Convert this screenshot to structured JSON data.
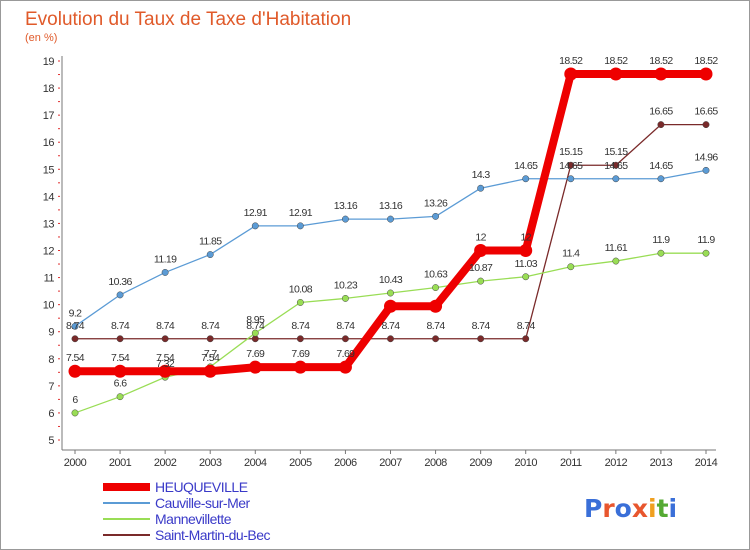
{
  "chart_data": {
    "type": "line",
    "title": "Evolution du Taux de Taxe d'Habitation",
    "subtitle": "(en %)",
    "x": [
      "2000",
      "2001",
      "2002",
      "2003",
      "2004",
      "2005",
      "2006",
      "2007",
      "2008",
      "2009",
      "2010",
      "2011",
      "2012",
      "2013",
      "2014"
    ],
    "ylim": [
      5,
      19
    ],
    "yticks": [
      5,
      6,
      7,
      8,
      9,
      10,
      11,
      12,
      13,
      14,
      15,
      16,
      17,
      18,
      19
    ],
    "grid": false,
    "legend_position": "bottom-left",
    "series": [
      {
        "name": "HEUQUEVILLE",
        "color": "#ee0000",
        "values": [
          7.54,
          7.54,
          7.54,
          7.54,
          7.69,
          7.69,
          7.69,
          9.94,
          9.94,
          12,
          12,
          18.52,
          18.52,
          18.52,
          18.52
        ],
        "labels": [
          "7.54",
          "7.54",
          "7.54",
          "7.54",
          "7.69",
          "7.69",
          "7.69",
          "",
          "",
          "12",
          "12",
          "18.52",
          "18.52",
          "18.52",
          "18.52"
        ]
      },
      {
        "name": "Cauville-sur-Mer",
        "color": "#5b9bd5",
        "values": [
          9.2,
          10.36,
          11.19,
          11.85,
          12.91,
          12.91,
          13.16,
          13.16,
          13.26,
          14.3,
          14.65,
          14.65,
          14.65,
          14.65,
          14.96
        ],
        "labels": [
          "9.2",
          "10.36",
          "11.19",
          "11.85",
          "12.91",
          "12.91",
          "13.16",
          "13.16",
          "13.26",
          "14.3",
          "14.65",
          "14.65",
          "14.65",
          "14.65",
          "14.96"
        ]
      },
      {
        "name": "Mannevillette",
        "color": "#99dd55",
        "values": [
          6,
          6.6,
          7.32,
          7.7,
          8.95,
          10.08,
          10.23,
          10.43,
          10.63,
          10.87,
          11.03,
          11.4,
          11.61,
          11.9,
          11.9
        ],
        "labels": [
          "6",
          "6.6",
          "7.32",
          "7.7",
          "8.95",
          "10.08",
          "10.23",
          "10.43",
          "10.63",
          "10.87",
          "11.03",
          "11.4",
          "11.61",
          "11.9",
          "11.9"
        ]
      },
      {
        "name": "Saint-Martin-du-Bec",
        "color": "#7a2a2a",
        "values": [
          8.74,
          8.74,
          8.74,
          8.74,
          8.74,
          8.74,
          8.74,
          8.74,
          8.74,
          8.74,
          8.74,
          15.15,
          15.15,
          16.65,
          16.65
        ],
        "labels": [
          "8.74",
          "8.74",
          "8.74",
          "8.74",
          "8.74",
          "8.74",
          "8.74",
          "8.74",
          "8.74",
          "8.74",
          "8.74",
          "15.15",
          "15.15",
          "16.65",
          "16.65"
        ]
      }
    ]
  },
  "branding": {
    "logo_text": "Proxiti",
    "logo_colors": [
      "#3a6fd8",
      "#e8562e",
      "#3a6fd8",
      "#e8562e",
      "#f0a020",
      "#55aa33",
      "#3a6fd8"
    ]
  }
}
